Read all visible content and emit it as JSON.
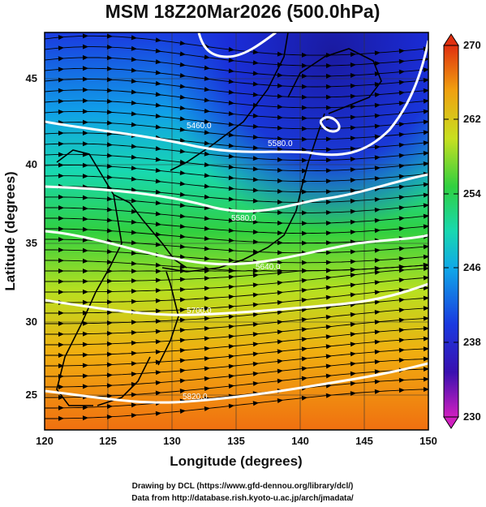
{
  "title": "MSM 18Z20Mar2026 (500.0hPa)",
  "xlabel": "Longitude (degrees)",
  "ylabel": "Latitude (degrees)",
  "x_ticks": [
    "120",
    "125",
    "130",
    "135",
    "140",
    "145",
    "150"
  ],
  "y_ticks": [
    "25",
    "30",
    "35",
    "40",
    "45"
  ],
  "colorbar": {
    "labels": [
      "270",
      "262",
      "254",
      "246",
      "238",
      "230"
    ],
    "range": [
      230,
      270
    ]
  },
  "contours": [
    {
      "label": "5460.0"
    },
    {
      "label": "5580.0"
    },
    {
      "label": "5580.0"
    },
    {
      "label": "5640.0"
    },
    {
      "label": "5700.0"
    },
    {
      "label": "5820.0"
    }
  ],
  "credits": {
    "line1": "Drawing by DCL (https://www.gfd-dennou.org/library/dcl/)",
    "line2": "Data from http://database.rish.kyoto-u.ac.jp/arch/jmadata/"
  },
  "colors": {
    "cold": "#1a1ad0",
    "mid": "#1ad49a",
    "warm": "#f08a10",
    "contour": "#ffffff"
  }
}
